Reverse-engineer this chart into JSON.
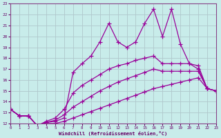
{
  "xlabel": "Windchill (Refroidissement éolien,°C)",
  "xlim": [
    0,
    23
  ],
  "ylim": [
    12,
    23
  ],
  "xticks": [
    0,
    1,
    2,
    3,
    4,
    5,
    6,
    7,
    8,
    9,
    10,
    11,
    12,
    13,
    14,
    15,
    16,
    17,
    18,
    19,
    20,
    21,
    22,
    23
  ],
  "yticks": [
    12,
    13,
    14,
    15,
    16,
    17,
    18,
    19,
    20,
    21,
    22,
    23
  ],
  "background_color": "#c8ecea",
  "grid_color": "#b0c8cc",
  "line_color": "#990099",
  "line1_y": [
    13.3,
    12.7,
    12.7,
    11.8,
    12.1,
    12.2,
    12.5,
    16.7,
    17.5,
    18.2,
    19.5,
    21.2,
    19.5,
    19.0,
    19.5,
    21.2,
    22.5,
    20.0,
    22.5,
    19.3,
    17.5,
    17.0,
    15.2,
    15.0
  ],
  "line2_y": [
    13.3,
    12.7,
    12.7,
    11.8,
    12.2,
    12.5,
    13.3,
    14.8,
    15.5,
    16.0,
    16.5,
    17.0,
    17.3,
    17.5,
    17.8,
    18.0,
    18.2,
    17.5,
    17.5,
    17.5,
    17.5,
    17.3,
    15.2,
    15.0
  ],
  "line3_y": [
    13.3,
    12.7,
    12.7,
    11.8,
    12.1,
    12.3,
    12.8,
    13.5,
    14.0,
    14.5,
    15.0,
    15.4,
    15.8,
    16.1,
    16.4,
    16.7,
    17.0,
    16.8,
    16.8,
    16.8,
    16.8,
    16.8,
    15.2,
    15.0
  ],
  "line4_y": [
    13.3,
    12.7,
    12.7,
    11.8,
    12.0,
    12.0,
    12.2,
    12.5,
    12.8,
    13.1,
    13.4,
    13.7,
    14.0,
    14.3,
    14.6,
    14.9,
    15.2,
    15.4,
    15.6,
    15.8,
    16.0,
    16.2,
    15.2,
    15.0
  ]
}
